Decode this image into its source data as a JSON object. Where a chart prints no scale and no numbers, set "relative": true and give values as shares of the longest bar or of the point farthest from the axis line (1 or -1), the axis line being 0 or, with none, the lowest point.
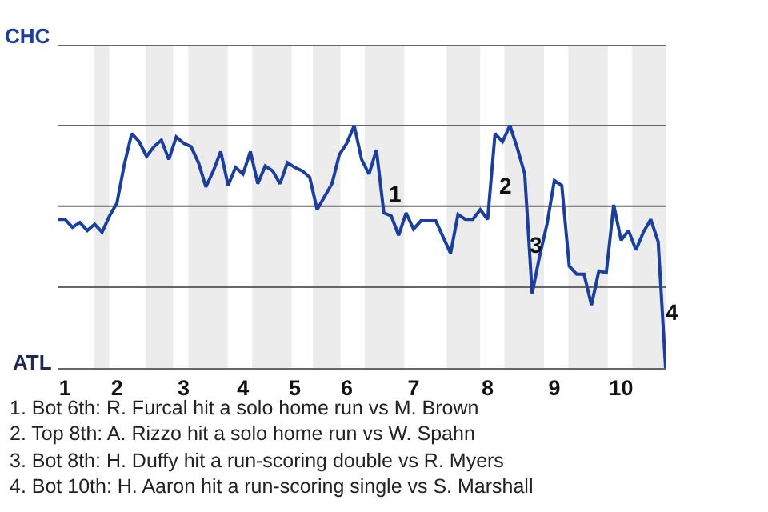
{
  "chart_data": {
    "type": "line",
    "relative": true,
    "categories": [
      null,
      "1",
      null,
      null,
      null,
      null,
      null,
      null,
      "2",
      null,
      null,
      null,
      null,
      null,
      null,
      null,
      null,
      "3",
      null,
      null,
      null,
      null,
      null,
      null,
      null,
      "4",
      null,
      null,
      null,
      null,
      null,
      null,
      "5",
      null,
      null,
      null,
      null,
      null,
      null,
      "6",
      null,
      null,
      null,
      null,
      null,
      null,
      null,
      null,
      "7",
      null,
      null,
      null,
      null,
      null,
      null,
      null,
      null,
      null,
      "8",
      null,
      null,
      null,
      null,
      null,
      null,
      null,
      null,
      "9",
      null,
      null,
      null,
      null,
      null,
      null,
      null,
      null,
      "10",
      null,
      null,
      null,
      null,
      null,
      null
    ],
    "series": [
      {
        "color": "#1a3f9c",
        "values": [
          0.613,
          0.613,
          0.58,
          0.6,
          0.567,
          0.593,
          0.56,
          0.627,
          0.68,
          0.84,
          0.967,
          0.933,
          0.873,
          0.913,
          0.94,
          0.86,
          0.953,
          0.927,
          0.913,
          0.847,
          0.747,
          0.813,
          0.893,
          0.753,
          0.827,
          0.8,
          0.893,
          0.76,
          0.833,
          0.813,
          0.76,
          0.847,
          0.827,
          0.813,
          0.787,
          0.653,
          0.707,
          0.76,
          0.88,
          0.927,
          1,
          0.86,
          0.8,
          0.9,
          0.64,
          0.627,
          0.547,
          0.64,
          0.573,
          0.607,
          0.607,
          0.607,
          0.54,
          0.473,
          0.633,
          0.613,
          0.613,
          0.653,
          0.613,
          0.967,
          0.933,
          1,
          0.907,
          0.8,
          0.307,
          0.46,
          0.593,
          0.773,
          0.753,
          0.42,
          0.387,
          0.387,
          0.26,
          0.4,
          0.393,
          0.673,
          0.527,
          0.567,
          0.487,
          0.56,
          0.613,
          0.52,
          0
        ]
      }
    ],
    "marker": "none",
    "line_style": "solid",
    "ref_lines": [
      {
        "axis": "y",
        "value": 0.333,
        "color": "#666666"
      },
      {
        "axis": "y",
        "value": 0.667,
        "color": "#666666"
      },
      {
        "axis": "y",
        "value": 1,
        "color": "#666666"
      },
      {
        "axis": "y",
        "value": 1.333,
        "color": "#666666"
      }
    ],
    "annotations": [
      "CHC",
      "ATL",
      "1",
      "2",
      "3",
      "4",
      "1. Bot 6th: R. Furcal hit a solo home run vs M. Brown",
      "2. Top 8th: A. Rizzo hit a solo home run vs W. Spahn",
      "3. Bot 8th: H. Duffy hit a run-scoring double vs R. Myers",
      "4. Bot 10th: H. Aaron hit a run-scoring single vs S. Marshall"
    ]
  }
}
